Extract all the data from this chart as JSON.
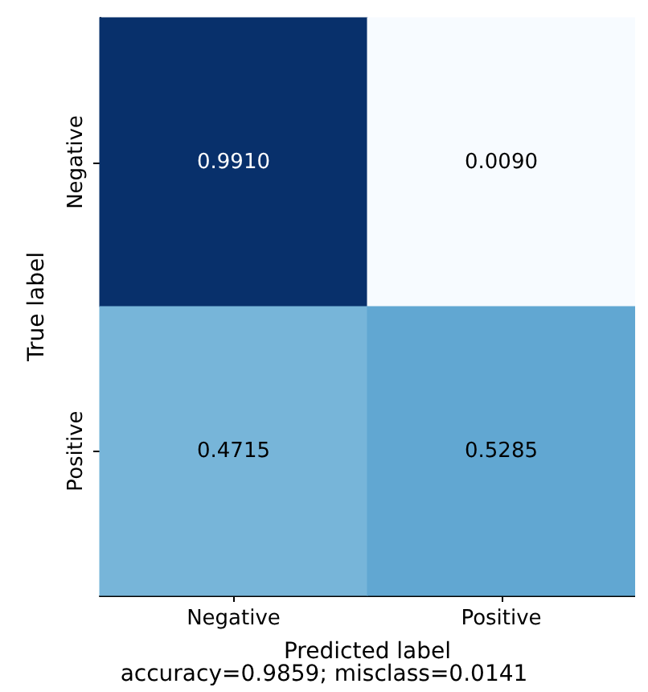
{
  "chart_data": {
    "type": "heatmap",
    "categories": [
      "Negative",
      "Positive"
    ],
    "y_categories": [
      "Negative",
      "Positive"
    ],
    "cells": [
      [
        0.991,
        0.009
      ],
      [
        0.4715,
        0.5285
      ]
    ],
    "cell_labels": [
      [
        "0.9910",
        "0.0090"
      ],
      [
        "0.4715",
        "0.5285"
      ]
    ],
    "xlabel": "Predicted label",
    "ylabel": "True label",
    "annotations": [
      "accuracy=0.9859; misclass=0.0141"
    ]
  }
}
